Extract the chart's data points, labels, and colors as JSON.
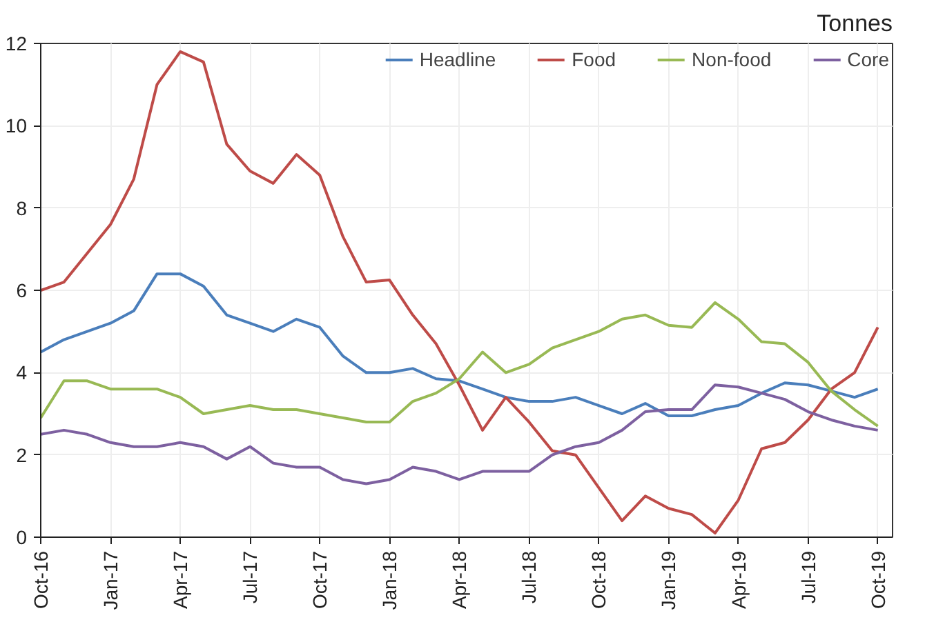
{
  "chart_data": {
    "type": "line",
    "ylabel": "Tonnes",
    "x": [
      "2016-10",
      "2016-11",
      "2016-12",
      "2017-01",
      "2017-02",
      "2017-03",
      "2017-04",
      "2017-05",
      "2017-06",
      "2017-07",
      "2017-08",
      "2017-09",
      "2017-10",
      "2017-11",
      "2017-12",
      "2018-01",
      "2018-02",
      "2018-03",
      "2018-04",
      "2018-05",
      "2018-06",
      "2018-07",
      "2018-08",
      "2018-09",
      "2018-10",
      "2018-11",
      "2018-12",
      "2019-01",
      "2019-02",
      "2019-03",
      "2019-04",
      "2019-05",
      "2019-06",
      "2019-07",
      "2019-08",
      "2019-09",
      "2019-10"
    ],
    "series": [
      {
        "name": "Headline",
        "color": "#4a7ebb",
        "values": [
          4.5,
          4.8,
          5.0,
          5.2,
          5.5,
          6.4,
          6.4,
          6.1,
          5.4,
          5.2,
          5.0,
          5.3,
          5.1,
          4.4,
          4.0,
          4.0,
          4.1,
          3.85,
          3.8,
          3.6,
          3.4,
          3.3,
          3.3,
          3.4,
          3.2,
          3.0,
          3.25,
          2.95,
          2.95,
          3.1,
          3.2,
          3.5,
          3.75,
          3.7,
          3.55,
          3.4,
          3.6
        ]
      },
      {
        "name": "Food",
        "color": "#be4b48",
        "values": [
          6.0,
          6.2,
          6.9,
          7.6,
          8.7,
          11.0,
          11.8,
          11.55,
          9.55,
          8.9,
          8.6,
          9.3,
          8.8,
          7.3,
          6.2,
          6.25,
          5.4,
          4.7,
          3.7,
          2.6,
          3.4,
          2.8,
          2.1,
          2.0,
          1.2,
          0.4,
          1.0,
          0.7,
          0.55,
          0.1,
          0.9,
          2.15,
          2.3,
          2.85,
          3.6,
          4.0,
          5.1
        ]
      },
      {
        "name": "Non-food",
        "color": "#98b954",
        "values": [
          2.9,
          3.8,
          3.8,
          3.6,
          3.6,
          3.6,
          3.4,
          3.0,
          3.1,
          3.2,
          3.1,
          3.1,
          3.0,
          2.9,
          2.8,
          2.8,
          3.3,
          3.5,
          3.85,
          4.5,
          4.0,
          4.2,
          4.6,
          4.8,
          5.0,
          5.3,
          5.4,
          5.15,
          5.1,
          5.7,
          5.3,
          4.75,
          4.7,
          4.25,
          3.55,
          3.1,
          2.7
        ]
      },
      {
        "name": "Core",
        "color": "#7d60a0",
        "values": [
          2.5,
          2.6,
          2.5,
          2.3,
          2.2,
          2.2,
          2.3,
          2.2,
          1.9,
          2.2,
          1.8,
          1.7,
          1.7,
          1.4,
          1.3,
          1.4,
          1.7,
          1.6,
          1.4,
          1.6,
          1.6,
          1.6,
          2.0,
          2.2,
          2.3,
          2.6,
          3.05,
          3.1,
          3.1,
          3.7,
          3.65,
          3.5,
          3.35,
          3.05,
          2.85,
          2.7,
          2.6
        ]
      }
    ],
    "xlim": [
      "2016-10-01",
      "2019-10-20"
    ],
    "xticks": [
      {
        "value": "2016-10",
        "label": "Oct-16"
      },
      {
        "value": "2017-01",
        "label": "Jan-17"
      },
      {
        "value": "2017-04",
        "label": "Apr-17"
      },
      {
        "value": "2017-07",
        "label": "Jul-17"
      },
      {
        "value": "2017-10",
        "label": "Oct-17"
      },
      {
        "value": "2018-01",
        "label": "Jan-18"
      },
      {
        "value": "2018-04",
        "label": "Apr-18"
      },
      {
        "value": "2018-07",
        "label": "Jul-18"
      },
      {
        "value": "2018-10",
        "label": "Oct-18"
      },
      {
        "value": "2019-01",
        "label": "Jan-19"
      },
      {
        "value": "2019-04",
        "label": "Apr-19"
      },
      {
        "value": "2019-07",
        "label": "Jul-19"
      },
      {
        "value": "2019-10",
        "label": "Oct-19"
      }
    ],
    "ylim": [
      0,
      12
    ],
    "yticks": [
      0,
      2,
      4,
      6,
      8,
      10,
      12
    ],
    "grid": true,
    "legend": "top right",
    "marker": "none",
    "line_style": "solid"
  }
}
